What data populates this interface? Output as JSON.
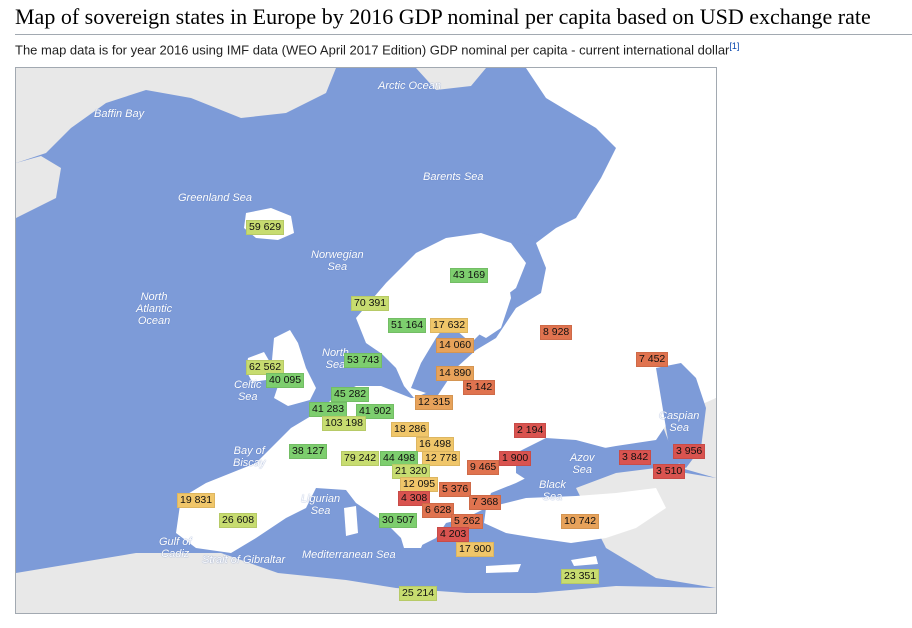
{
  "title": "Map of sovereign states in Europe by 2016 GDP nominal per capita based on USD exchange rate",
  "subtitle": "The map data is for year 2016 using IMF data (WEO April 2017 Edition) GDP nominal per capita - current international dollar",
  "subtitle_ref": "[1]",
  "colors": {
    "sea": "#7d9bd8",
    "land_outside": "#e8e8e8",
    "land_europe": "#ffffff",
    "very_high": "#7dce6e",
    "high": "#c7dc70",
    "mid": "#f0c66a",
    "low_mid": "#e7a25a",
    "low": "#e0734f",
    "very_low": "#d9534f"
  },
  "seas": {
    "baffin_bay": "Baffin Bay",
    "arctic_ocean": "Arctic Ocean",
    "barents_sea": "Barents Sea",
    "greenland_sea": "Greenland Sea",
    "norwegian_sea_1": "Norwegian",
    "norwegian_sea_2": "Sea",
    "north_atlantic_1": "North",
    "north_atlantic_2": "Atlantic",
    "north_atlantic_3": "Ocean",
    "celtic_sea_1": "Celtic",
    "celtic_sea_2": "Sea",
    "north_sea_1": "North",
    "north_sea_2": "Sea",
    "bay_of_biscay_1": "Bay of",
    "bay_of_biscay_2": "Biscay",
    "gulf_of_cadiz_1": "Gulf of",
    "gulf_of_cadiz_2": "Cadiz",
    "strait_of_gibraltar": "Strait of Gibraltar",
    "ligurian_sea_1": "Ligurian",
    "ligurian_sea_2": "Sea",
    "mediterranean_sea": "Mediterranean Sea",
    "black_sea_1": "Black",
    "black_sea_2": "Sea",
    "azov_sea_1": "Azov",
    "azov_sea_2": "Sea",
    "caspian_sea_1": "Caspian",
    "caspian_sea_2": "Sea"
  },
  "gdp_labels": [
    {
      "value": "59 629",
      "tier": "high"
    },
    {
      "value": "43 169",
      "tier": "very_high"
    },
    {
      "value": "70 391",
      "tier": "high"
    },
    {
      "value": "51 164",
      "tier": "very_high"
    },
    {
      "value": "17 632",
      "tier": "mid"
    },
    {
      "value": "14 060",
      "tier": "low_mid"
    },
    {
      "value": "8 928",
      "tier": "low"
    },
    {
      "value": "7 452",
      "tier": "low"
    },
    {
      "value": "62 562",
      "tier": "high"
    },
    {
      "value": "40 095",
      "tier": "very_high"
    },
    {
      "value": "53 743",
      "tier": "very_high"
    },
    {
      "value": "14 890",
      "tier": "low_mid"
    },
    {
      "value": "5 142",
      "tier": "low"
    },
    {
      "value": "45 282",
      "tier": "very_high"
    },
    {
      "value": "41 283",
      "tier": "very_high"
    },
    {
      "value": "41 902",
      "tier": "very_high"
    },
    {
      "value": "12 315",
      "tier": "low_mid"
    },
    {
      "value": "103 198",
      "tier": "high"
    },
    {
      "value": "18 286",
      "tier": "mid"
    },
    {
      "value": "2 194",
      "tier": "very_low"
    },
    {
      "value": "16 498",
      "tier": "mid"
    },
    {
      "value": "38 127",
      "tier": "very_high"
    },
    {
      "value": "79 242",
      "tier": "high"
    },
    {
      "value": "44 498",
      "tier": "very_high"
    },
    {
      "value": "12 778",
      "tier": "mid"
    },
    {
      "value": "1 900",
      "tier": "very_low"
    },
    {
      "value": "3 842",
      "tier": "very_low"
    },
    {
      "value": "3 956",
      "tier": "very_low"
    },
    {
      "value": "21 320",
      "tier": "high"
    },
    {
      "value": "9 465",
      "tier": "low"
    },
    {
      "value": "3 510",
      "tier": "very_low"
    },
    {
      "value": "12 095",
      "tier": "mid"
    },
    {
      "value": "5 376",
      "tier": "low"
    },
    {
      "value": "19 831",
      "tier": "mid"
    },
    {
      "value": "4 308",
      "tier": "very_low"
    },
    {
      "value": "7 368",
      "tier": "low"
    },
    {
      "value": "26 608",
      "tier": "high"
    },
    {
      "value": "6 628",
      "tier": "low"
    },
    {
      "value": "30 507",
      "tier": "very_high"
    },
    {
      "value": "5 262",
      "tier": "low"
    },
    {
      "value": "10 742",
      "tier": "low_mid"
    },
    {
      "value": "4 203",
      "tier": "very_low"
    },
    {
      "value": "17 900",
      "tier": "mid"
    },
    {
      "value": "23 351",
      "tier": "high"
    },
    {
      "value": "25 214",
      "tier": "high"
    }
  ]
}
